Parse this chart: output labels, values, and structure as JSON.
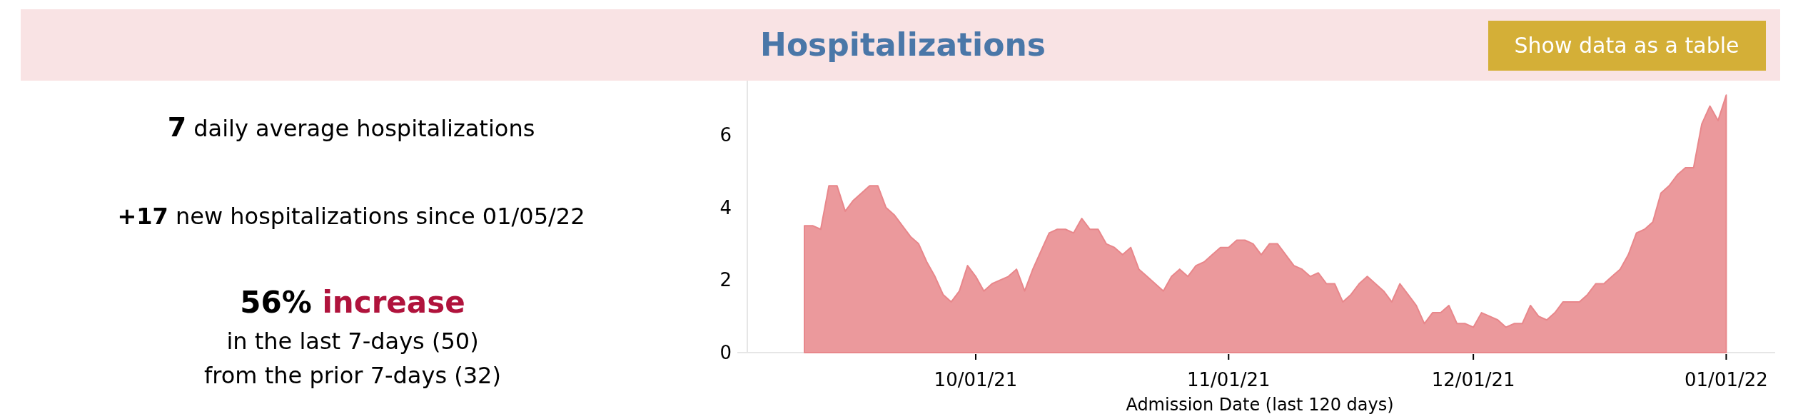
{
  "chart_data": {
    "type": "area",
    "title": "Hospitalizations",
    "xlabel": "Admission Date (last 120 days)",
    "annotations": [
      "7",
      " daily average hospitalizations",
      "+17",
      " new hospitalizations since 01/05/22",
      "56%",
      " increase",
      "in the last 7-days (50)",
      "from the prior 7-days (32)",
      "Show data as a table"
    ],
    "x": [
      "2021-09-10",
      "2021-09-11",
      "2021-09-12",
      "2021-09-13",
      "2021-09-14",
      "2021-09-15",
      "2021-09-16",
      "2021-09-17",
      "2021-09-18",
      "2021-09-19",
      "2021-09-20",
      "2021-09-21",
      "2021-09-22",
      "2021-09-23",
      "2021-09-24",
      "2021-09-25",
      "2021-09-26",
      "2021-09-27",
      "2021-09-28",
      "2021-09-29",
      "2021-09-30",
      "2021-10-01",
      "2021-10-02",
      "2021-10-03",
      "2021-10-04",
      "2021-10-05",
      "2021-10-06",
      "2021-10-07",
      "2021-10-08",
      "2021-10-09",
      "2021-10-10",
      "2021-10-11",
      "2021-10-12",
      "2021-10-13",
      "2021-10-14",
      "2021-10-15",
      "2021-10-16",
      "2021-10-17",
      "2021-10-18",
      "2021-10-19",
      "2021-10-20",
      "2021-10-21",
      "2021-10-22",
      "2021-10-23",
      "2021-10-24",
      "2021-10-25",
      "2021-10-26",
      "2021-10-27",
      "2021-10-28",
      "2021-10-29",
      "2021-10-30",
      "2021-10-31",
      "2021-11-01",
      "2021-11-02",
      "2021-11-03",
      "2021-11-04",
      "2021-11-05",
      "2021-11-06",
      "2021-11-07",
      "2021-11-08",
      "2021-11-09",
      "2021-11-10",
      "2021-11-11",
      "2021-11-12",
      "2021-11-13",
      "2021-11-14",
      "2021-11-15",
      "2021-11-16",
      "2021-11-17",
      "2021-11-18",
      "2021-11-19",
      "2021-11-20",
      "2021-11-21",
      "2021-11-22",
      "2021-11-23",
      "2021-11-24",
      "2021-11-25",
      "2021-11-26",
      "2021-11-27",
      "2021-11-28",
      "2021-11-29",
      "2021-11-30",
      "2021-12-01",
      "2021-12-02",
      "2021-12-03",
      "2021-12-04",
      "2021-12-05",
      "2021-12-06",
      "2021-12-07",
      "2021-12-08",
      "2021-12-09",
      "2021-12-10",
      "2021-12-11",
      "2021-12-12",
      "2021-12-13",
      "2021-12-14",
      "2021-12-15",
      "2021-12-16",
      "2021-12-17",
      "2021-12-18",
      "2021-12-19",
      "2021-12-20",
      "2021-12-21",
      "2021-12-22",
      "2021-12-23",
      "2021-12-24",
      "2021-12-25",
      "2021-12-26",
      "2021-12-27",
      "2021-12-28",
      "2021-12-29",
      "2021-12-30",
      "2021-12-31",
      "2022-01-01"
    ],
    "series": [
      {
        "color": "#e8878b",
        "values": [
          3.5,
          3.5,
          3.4,
          4.6,
          4.6,
          3.9,
          4.2,
          4.4,
          4.6,
          4.6,
          4.0,
          3.8,
          3.5,
          3.2,
          3.0,
          2.5,
          2.1,
          1.6,
          1.4,
          1.7,
          2.4,
          2.1,
          1.7,
          1.9,
          2.0,
          2.1,
          2.3,
          1.7,
          2.3,
          2.8,
          3.3,
          3.4,
          3.4,
          3.3,
          3.7,
          3.4,
          3.4,
          3.0,
          2.9,
          2.7,
          2.9,
          2.3,
          2.1,
          1.9,
          1.7,
          2.1,
          2.3,
          2.1,
          2.4,
          2.5,
          2.7,
          2.9,
          2.9,
          3.1,
          3.1,
          3.0,
          2.7,
          3.0,
          3.0,
          2.7,
          2.4,
          2.3,
          2.1,
          2.2,
          1.9,
          1.9,
          1.4,
          1.6,
          1.9,
          2.1,
          1.9,
          1.7,
          1.4,
          1.9,
          1.6,
          1.3,
          0.8,
          1.1,
          1.1,
          1.3,
          0.8,
          0.8,
          0.7,
          1.1,
          1.0,
          0.9,
          0.7,
          0.8,
          0.8,
          1.3,
          1.0,
          0.9,
          1.1,
          1.4,
          1.4,
          1.4,
          1.6,
          1.9,
          1.9,
          2.1,
          2.3,
          2.7,
          3.3,
          3.4,
          3.6,
          4.4,
          4.6,
          4.9,
          5.1,
          5.1,
          6.3,
          6.8,
          6.4,
          7.1
        ]
      }
    ],
    "xlim": [
      "2021-09-03",
      "2022-01-07"
    ],
    "xticks": [
      {
        "value": "2021-10-01",
        "label": "10/01/21"
      },
      {
        "value": "2021-11-01",
        "label": "11/01/21"
      },
      {
        "value": "2021-12-01",
        "label": "12/01/21"
      },
      {
        "value": "2022-01-01",
        "label": "01/01/22"
      }
    ],
    "ylim": [
      0,
      7.5
    ],
    "yticks": [
      0,
      2,
      4,
      6
    ]
  }
}
